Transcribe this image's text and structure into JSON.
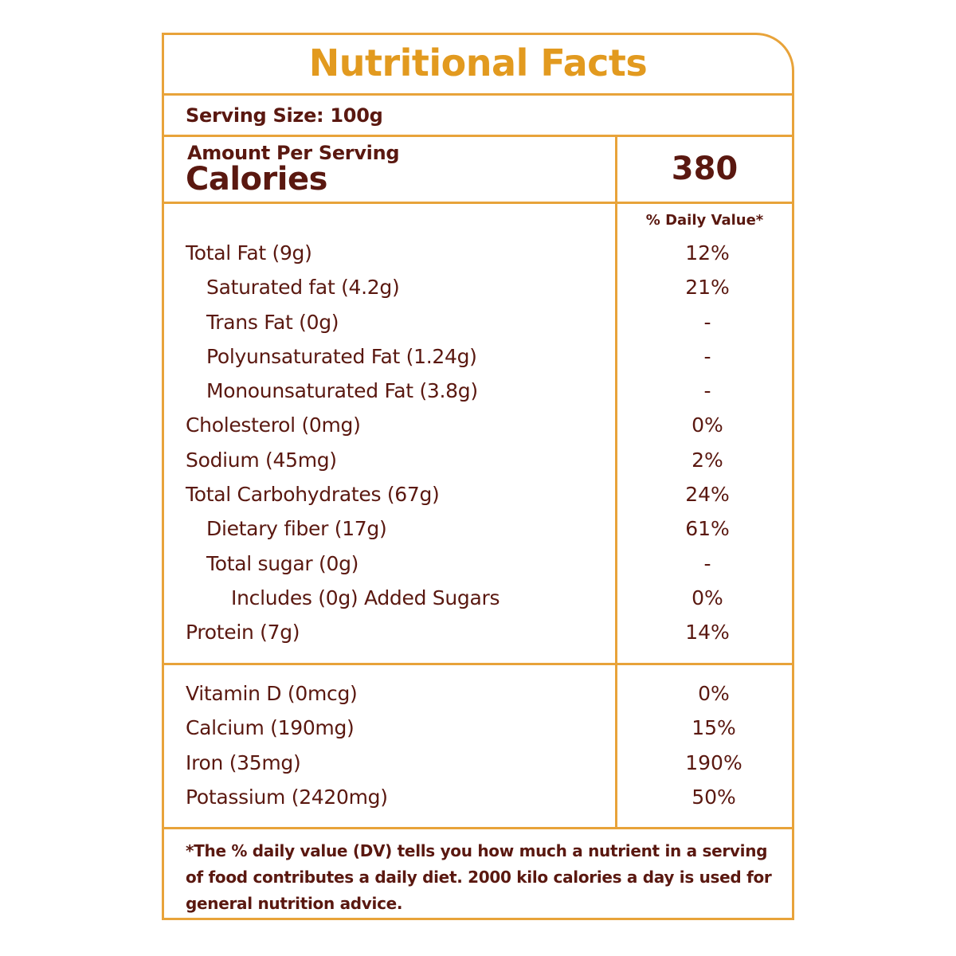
{
  "title": "Nutritional Facts",
  "serving_size": "Serving Size: 100g",
  "amount_per_serving": "Amount Per Serving",
  "calories": {
    "label": "Calories",
    "value": "380"
  },
  "daily_value_header": "% Daily Value*",
  "nutrients": [
    {
      "label": "Total Fat (9g)",
      "dv": "12%"
    },
    {
      "label": "Saturated fat (4.2g)",
      "dv": "21%"
    },
    {
      "label": "Trans Fat (0g)",
      "dv": "-"
    },
    {
      "label": "Polyunsaturated Fat (1.24g)",
      "dv": "-"
    },
    {
      "label": "Monounsaturated Fat (3.8g)",
      "dv": "-"
    },
    {
      "label": "Cholesterol (0mg)",
      "dv": "0%"
    },
    {
      "label": "Sodium (45mg)",
      "dv": "2%"
    },
    {
      "label": "Total Carbohydrates  (67g)",
      "dv": "24%"
    },
    {
      "label": "Dietary fiber (17g)",
      "dv": "61%"
    },
    {
      "label": "Total sugar (0g)",
      "dv": "-"
    },
    {
      "label": "Includes (0g) Added Sugars",
      "dv": "0%"
    },
    {
      "label": "Protein (7g)",
      "dv": "14%"
    }
  ],
  "vitamins": [
    {
      "label": "Vitamin D (0mcg)",
      "dv": "0%"
    },
    {
      "label": "Calcium (190mg)",
      "dv": "15%"
    },
    {
      "label": "Iron (35mg)",
      "dv": "190%"
    },
    {
      "label": "Potassium (2420mg)",
      "dv": "50%"
    }
  ],
  "footnote": "*The % daily value (DV) tells you how much a nutrient in a serving of food contributes a daily diet. 2000 kilo calories a day is used for general nutrition advice.",
  "colors": {
    "border": "#e8a33a",
    "title": "#e29a1f",
    "text": "#5a1810"
  }
}
